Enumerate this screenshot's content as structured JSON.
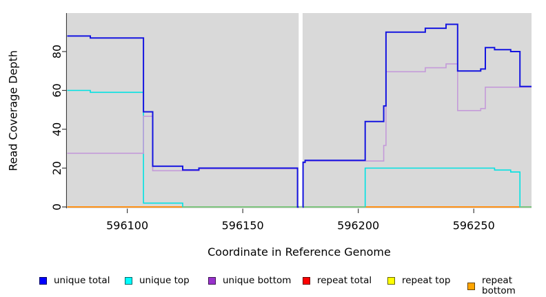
{
  "figure": {
    "background": "#FFFFFF",
    "panel_background": "#D9D9D9"
  },
  "chart_data": {
    "type": "line",
    "line_style": "step",
    "title": "",
    "xlabel": "Coordinate in Reference Genome",
    "ylabel": "Read Coverage Depth",
    "xlim": [
      596074,
      596275
    ],
    "ylim": [
      0,
      100
    ],
    "x_ticks": [
      596100,
      596150,
      596200,
      596250
    ],
    "x_tick_labels": [
      "596100",
      "596150",
      "596200",
      "596250"
    ],
    "y_ticks": [
      0,
      20,
      40,
      60,
      80
    ],
    "y_tick_labels": [
      "0",
      "20",
      "40",
      "60",
      "80"
    ],
    "grid": false,
    "legend_position": "bottom",
    "missing_data_gap_x": [
      596174.2,
      596175.9
    ],
    "series": [
      {
        "name": "unique total",
        "legend_label": "unique total",
        "line_color": "#1414E0",
        "swatch_color": "#0000FF",
        "line_width": 2,
        "segments": [
          {
            "points": [
              [
                596074,
                88
              ],
              [
                596084,
                87
              ],
              [
                596107,
                49
              ],
              [
                596111,
                21
              ],
              [
                596124,
                19
              ],
              [
                596131,
                20
              ],
              [
                596173.7,
                0
              ],
              [
                596174.2,
                0
              ]
            ]
          },
          {
            "points": [
              [
                596175.9,
                0
              ],
              [
                596176.1,
                23
              ],
              [
                596177,
                24
              ],
              [
                596203,
                44
              ],
              [
                596211,
                52
              ],
              [
                596212,
                90
              ],
              [
                596229,
                92
              ],
              [
                596238,
                94
              ],
              [
                596243,
                70
              ],
              [
                596253,
                71
              ],
              [
                596255,
                82
              ],
              [
                596259,
                81
              ],
              [
                596266,
                80
              ],
              [
                596270,
                62
              ],
              [
                596275,
                62
              ]
            ]
          }
        ]
      },
      {
        "name": "unique top",
        "legend_label": "unique top",
        "line_color": "#00E2E2",
        "swatch_color": "#00FFFF",
        "line_width": 1.6,
        "segments": [
          {
            "points": [
              [
                596074,
                60
              ],
              [
                596084,
                59
              ],
              [
                596107,
                2
              ],
              [
                596124,
                0
              ],
              [
                596174.2,
                0
              ]
            ]
          },
          {
            "points": [
              [
                596175.9,
                0
              ],
              [
                596203,
                20
              ],
              [
                596259,
                19
              ],
              [
                596266,
                18
              ],
              [
                596270,
                0
              ],
              [
                596275,
                0
              ]
            ]
          }
        ]
      },
      {
        "name": "unique bottom",
        "legend_label": "unique bottom",
        "line_color": "#C49AD9",
        "swatch_color": "#9932CC",
        "line_width": 1.6,
        "segments": [
          {
            "points": [
              [
                596074,
                28
              ],
              [
                596107,
                47
              ],
              [
                596111,
                19
              ],
              [
                596131,
                20
              ],
              [
                596173.7,
                0
              ],
              [
                596174.2,
                0
              ]
            ]
          },
          {
            "points": [
              [
                596175.9,
                0
              ],
              [
                596176.1,
                23
              ],
              [
                596177,
                24
              ],
              [
                596211,
                32
              ],
              [
                596212,
                70
              ],
              [
                596229,
                72
              ],
              [
                596238,
                74
              ],
              [
                596243,
                50
              ],
              [
                596253,
                51
              ],
              [
                596255,
                62
              ],
              [
                596275,
                62
              ]
            ]
          }
        ]
      },
      {
        "name": "repeat total",
        "legend_label": "repeat total",
        "line_color": "#E00000",
        "swatch_color": "#FF0000",
        "line_width": 1.6,
        "segments": [
          {
            "points": [
              [
                596074,
                0
              ],
              [
                596174.2,
                0
              ]
            ]
          },
          {
            "points": [
              [
                596175.9,
                0
              ],
              [
                596275,
                0
              ]
            ]
          }
        ]
      },
      {
        "name": "repeat top",
        "legend_label": "repeat top",
        "line_color": "#F5F500",
        "swatch_color": "#FFFF00",
        "line_width": 1.6,
        "segments": [
          {
            "points": [
              [
                596074,
                0
              ],
              [
                596174.2,
                0
              ]
            ]
          },
          {
            "points": [
              [
                596175.9,
                0
              ],
              [
                596275,
                0
              ]
            ]
          }
        ]
      },
      {
        "name": "repeat bottom",
        "legend_label": "repeat bottom",
        "line_color": "#FF9015",
        "swatch_color": "#FFA500",
        "line_width": 2,
        "segments": [
          {
            "points": [
              [
                596074,
                0
              ],
              [
                596174.2,
                0
              ]
            ]
          },
          {
            "points": [
              [
                596175.9,
                0
              ],
              [
                596275,
                0
              ]
            ]
          }
        ]
      }
    ],
    "zero_overlay_segments": [
      {
        "color": "#7CC87C",
        "x_start": 596124,
        "x_end": 596203,
        "note": "unique top at zero overlapping repeat lines renders pale green"
      },
      {
        "color": "#7CC87C",
        "x_start": 596270,
        "x_end": 596275,
        "note": "unique top at zero overlapping repeat lines renders pale green"
      }
    ]
  }
}
